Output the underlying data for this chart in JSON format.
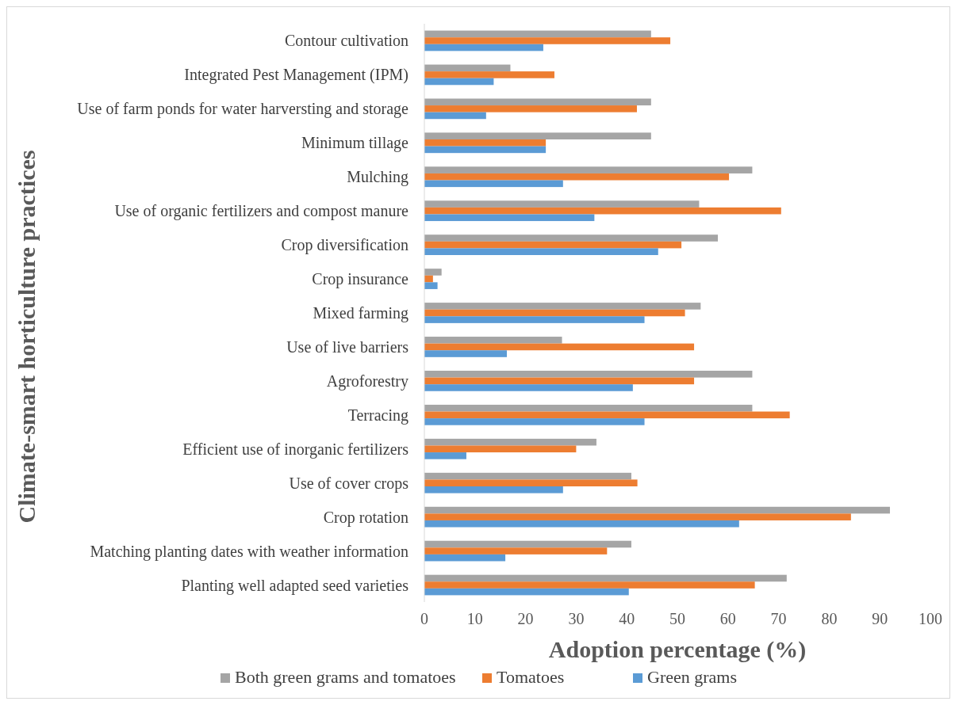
{
  "chart_data": {
    "type": "bar",
    "orientation": "horizontal",
    "xlabel": "Adoption percentage (%)",
    "ylabel": "Climate-smart horticulture practices",
    "categories": [
      "Contour cultivation",
      "Integrated Pest Management (IPM)",
      "Use of farm ponds for water harversting and storage",
      "Minimum tillage",
      "Mulching",
      "Use of organic fertilizers and compost manure",
      "Crop diversification",
      "Crop insurance",
      "Mixed farming",
      "Use of live barriers",
      "Agroforestry",
      "Terracing",
      "Efficient use of inorganic fertilizers",
      "Use of cover crops",
      "Crop rotation",
      "Matching planting dates with weather information",
      "Planting well adapted seed varieties"
    ],
    "series": [
      {
        "name": "Both green grams and tomatoes",
        "color": "#a5a5a5",
        "values": [
          44.8,
          17,
          44.8,
          44.8,
          64.8,
          54.3,
          58,
          3.4,
          54.6,
          27.2,
          64.8,
          64.8,
          34,
          40.9,
          92,
          40.9,
          71.6
        ]
      },
      {
        "name": "Tomatoes",
        "color": "#ed7d31",
        "values": [
          48.6,
          25.7,
          42,
          24,
          60.2,
          70.5,
          50.8,
          1.7,
          51.5,
          53.3,
          53.3,
          72.2,
          30,
          42.1,
          84.3,
          36.1,
          65.3
        ]
      },
      {
        "name": "Green grams",
        "color": "#5b9bd5",
        "values": [
          23.5,
          13.7,
          12.2,
          24,
          27.4,
          33.6,
          46.2,
          2.6,
          43.5,
          16.3,
          41.2,
          43.5,
          8.3,
          27.4,
          62.2,
          16,
          40.4
        ]
      }
    ],
    "xlim": [
      0,
      100
    ],
    "xticks": [
      0,
      10,
      20,
      30,
      40,
      50,
      60,
      70,
      80,
      90,
      100
    ],
    "grid": false,
    "legend": "bottom"
  }
}
